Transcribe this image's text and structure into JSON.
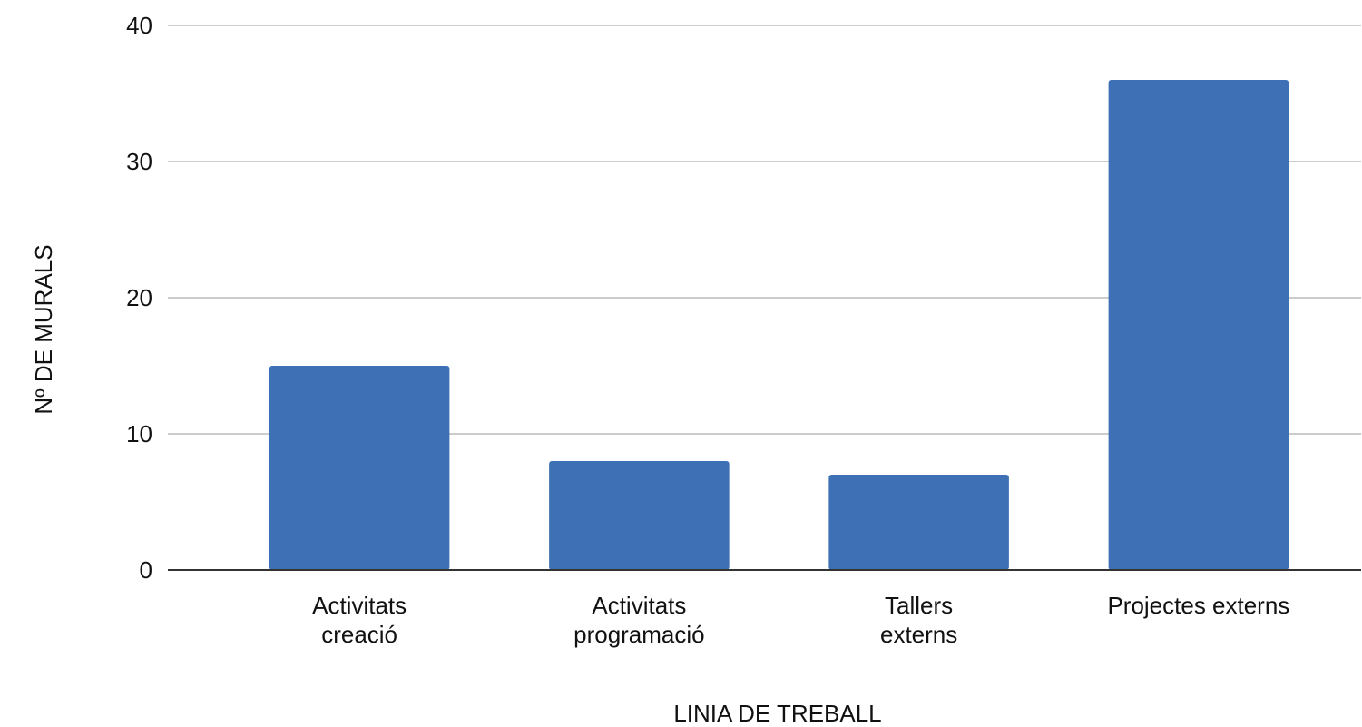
{
  "chart_data": {
    "type": "bar",
    "y_label": "Nº DE MURALS",
    "x_label": "LINIA DE TREBALL",
    "categories": [
      "Activitats\ncreació",
      "Activitats\nprogramació",
      "Tallers\nexterns",
      "Projectes externs"
    ],
    "values": [
      15,
      8,
      7,
      36
    ],
    "color": "#3d70b4",
    "ylim": [
      0,
      40
    ],
    "yticks": [
      0,
      10,
      20,
      30,
      40
    ],
    "grid": true
  }
}
